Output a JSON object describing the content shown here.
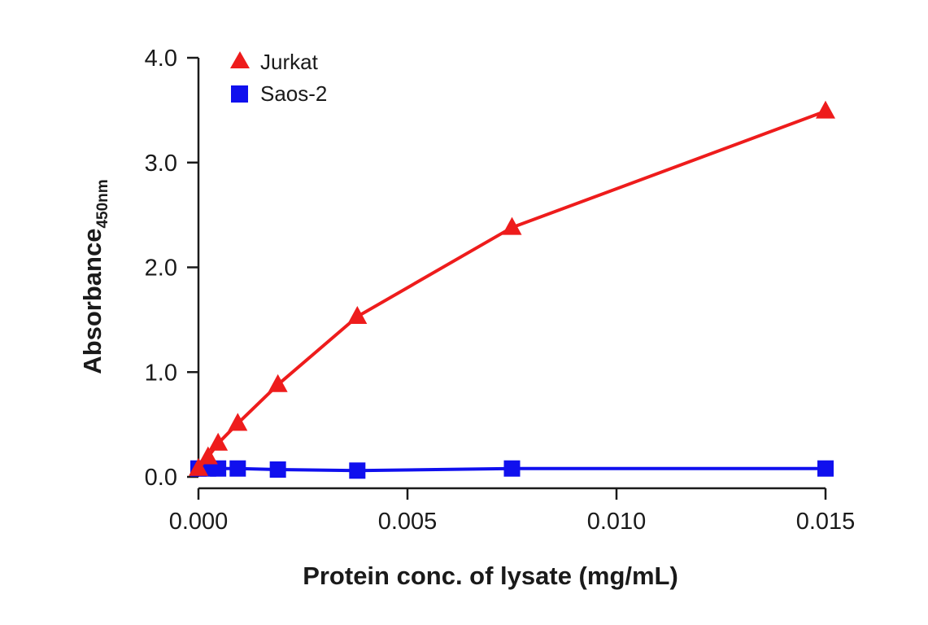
{
  "chart_data": {
    "type": "line",
    "title": "",
    "xlabel": "Protein conc. of lysate (mg/mL)",
    "ylabel": "Absorbance",
    "ylabel_subscript": "450nm",
    "xlim": [
      0,
      0.015
    ],
    "ylim": [
      0,
      4.0
    ],
    "x_ticks": [
      0,
      0.005,
      0.01,
      0.015
    ],
    "x_tick_labels": [
      "0.000",
      "0.005",
      "0.010",
      "0.015"
    ],
    "y_ticks": [
      0,
      1,
      2,
      3,
      4
    ],
    "y_tick_labels": [
      "0.0",
      "1.0",
      "2.0",
      "3.0",
      "4.0"
    ],
    "grid": false,
    "legend_position": "top-left",
    "series": [
      {
        "name": "Jurkat",
        "color": "#ee1c1c",
        "marker": "triangle",
        "x": [
          0,
          0.00023,
          0.00047,
          0.00094,
          0.0019,
          0.0038,
          0.0075,
          0.015
        ],
        "y": [
          0.08,
          0.19,
          0.32,
          0.51,
          0.88,
          1.53,
          2.38,
          3.49
        ]
      },
      {
        "name": "Saos-2",
        "color": "#1010ee",
        "marker": "square",
        "x": [
          0,
          0.00023,
          0.00047,
          0.00094,
          0.0019,
          0.0038,
          0.0075,
          0.015
        ],
        "y": [
          0.08,
          0.08,
          0.08,
          0.08,
          0.07,
          0.06,
          0.08,
          0.08
        ]
      }
    ]
  }
}
